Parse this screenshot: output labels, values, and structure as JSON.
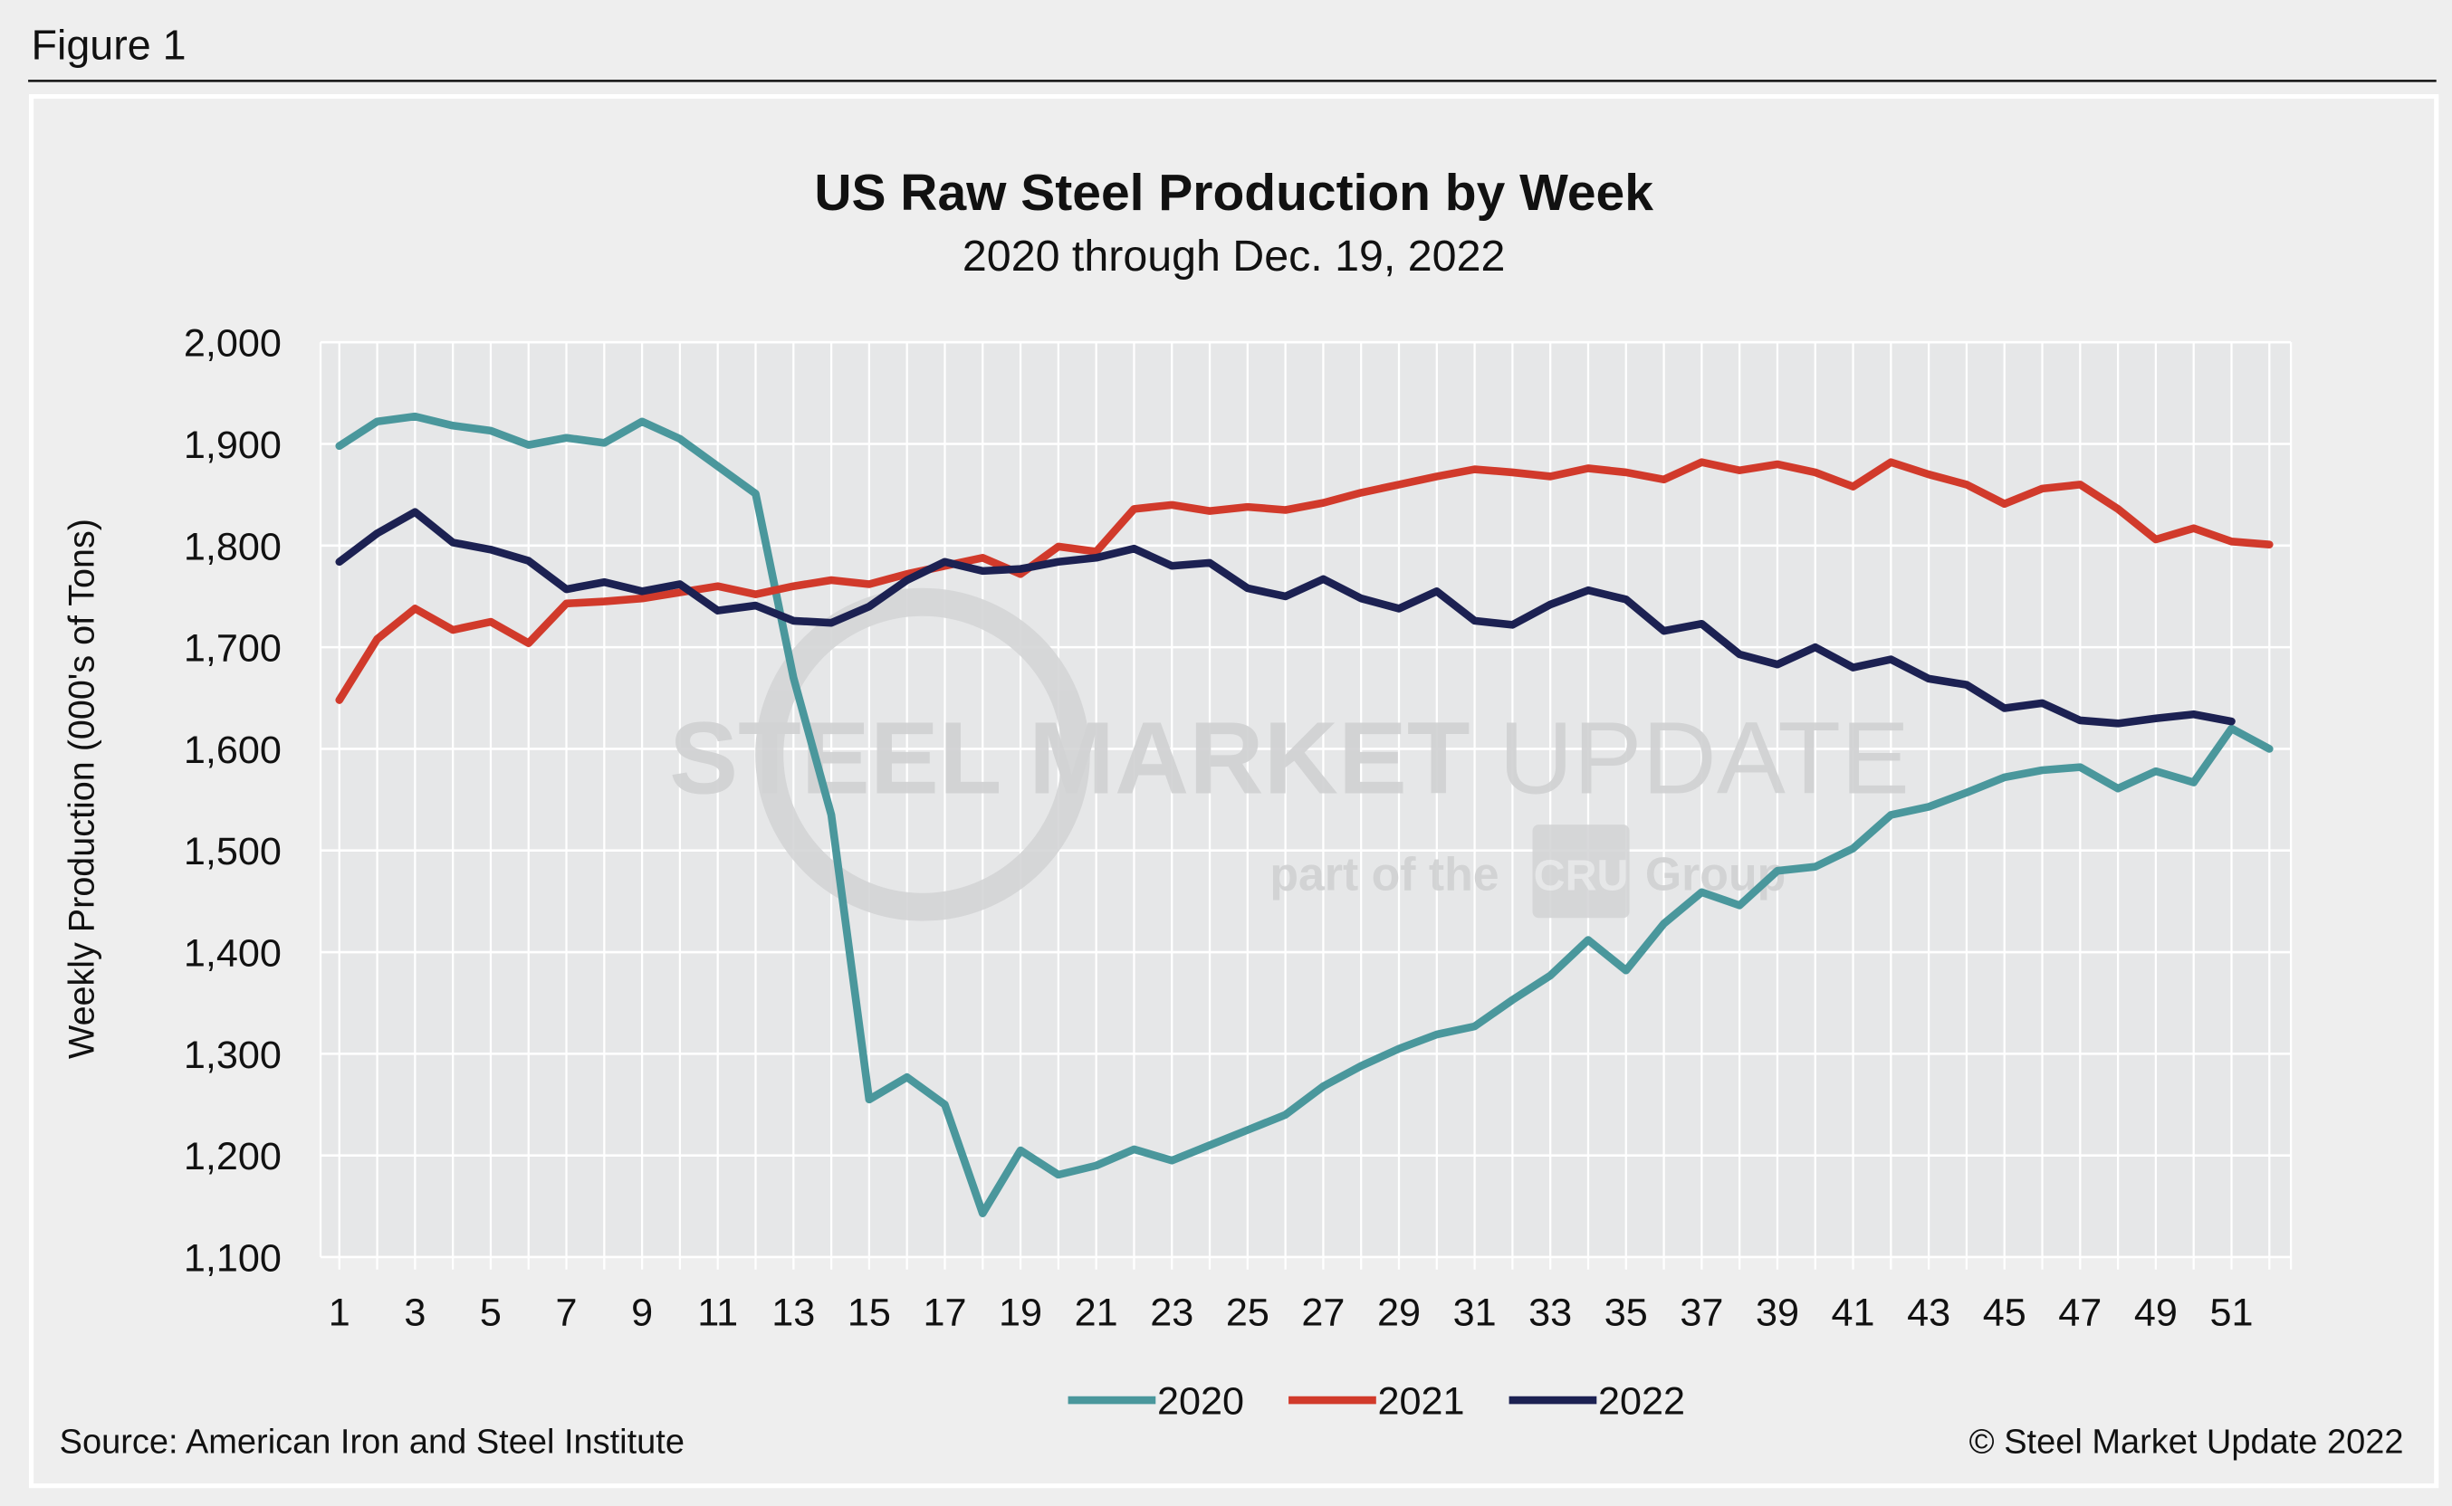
{
  "figure_label": "Figure 1",
  "source": "Source: American Iron and Steel Institute",
  "copyright": "© Steel Market Update 2022",
  "watermark": {
    "line1a": "STEEL MARKET",
    "line1b": "UPDATE",
    "line2a": "part of the",
    "line2b": "CRU",
    "line2c": "Group"
  },
  "colors": {
    "2020": "#4a979c",
    "2021": "#d13a2b",
    "2022": "#1c2152",
    "plot_bg": "#e6e7e8",
    "grid": "#ffffff"
  },
  "chart_data": {
    "type": "line",
    "title": "US Raw Steel Production by Week",
    "subtitle": "2020 through Dec. 19, 2022",
    "xlabel": "",
    "ylabel": "Weekly Production (000's of Tons)",
    "ylim": [
      1100,
      2000
    ],
    "xlim": [
      1,
      52
    ],
    "yticks": [
      "1,100",
      "1,200",
      "1,300",
      "1,400",
      "1,500",
      "1,600",
      "1,700",
      "1,800",
      "1,900",
      "2,000"
    ],
    "xticks": [
      "1",
      "3",
      "5",
      "7",
      "9",
      "11",
      "13",
      "15",
      "17",
      "19",
      "21",
      "23",
      "25",
      "27",
      "29",
      "31",
      "33",
      "35",
      "37",
      "39",
      "41",
      "43",
      "45",
      "47",
      "49",
      "51"
    ],
    "grid": true,
    "legend": "bottom-center",
    "series": [
      {
        "name": "2020",
        "values": [
          1898,
          1922,
          1927,
          1918,
          1913,
          1899,
          1906,
          1901,
          1922,
          1905,
          1878,
          1851,
          1670,
          1535,
          1255,
          1277,
          1250,
          1143,
          1205,
          1181,
          1190,
          1206,
          1195,
          1210,
          1225,
          1240,
          1268,
          1288,
          1305,
          1319,
          1327,
          1353,
          1377,
          1412,
          1382,
          1428,
          1459,
          1446,
          1480,
          1484,
          1502,
          1535,
          1543,
          1557,
          1572,
          1579,
          1582,
          1561,
          1578,
          1567,
          1620,
          1600
        ]
      },
      {
        "name": "2021",
        "values": [
          1648,
          1708,
          1738,
          1717,
          1725,
          1704,
          1743,
          1745,
          1748,
          1754,
          1760,
          1752,
          1760,
          1766,
          1762,
          1772,
          1780,
          1788,
          1772,
          1799,
          1794,
          1836,
          1840,
          1834,
          1838,
          1835,
          1842,
          1852,
          1860,
          1868,
          1875,
          1872,
          1868,
          1876,
          1872,
          1865,
          1882,
          1874,
          1880,
          1872,
          1858,
          1882,
          1870,
          1860,
          1841,
          1856,
          1860,
          1836,
          1806,
          1817,
          1804,
          1801
        ]
      },
      {
        "name": "2022",
        "values": [
          1784,
          1812,
          1833,
          1803,
          1796,
          1785,
          1757,
          1764,
          1755,
          1762,
          1736,
          1741,
          1726,
          1724,
          1740,
          1766,
          1784,
          1775,
          1777,
          1784,
          1788,
          1797,
          1780,
          1783,
          1758,
          1750,
          1767,
          1748,
          1738,
          1755,
          1726,
          1722,
          1742,
          1756,
          1747,
          1716,
          1723,
          1693,
          1683,
          1700,
          1680,
          1688,
          1669,
          1663,
          1640,
          1645,
          1628,
          1625,
          1630,
          1634,
          1627
        ]
      }
    ]
  }
}
